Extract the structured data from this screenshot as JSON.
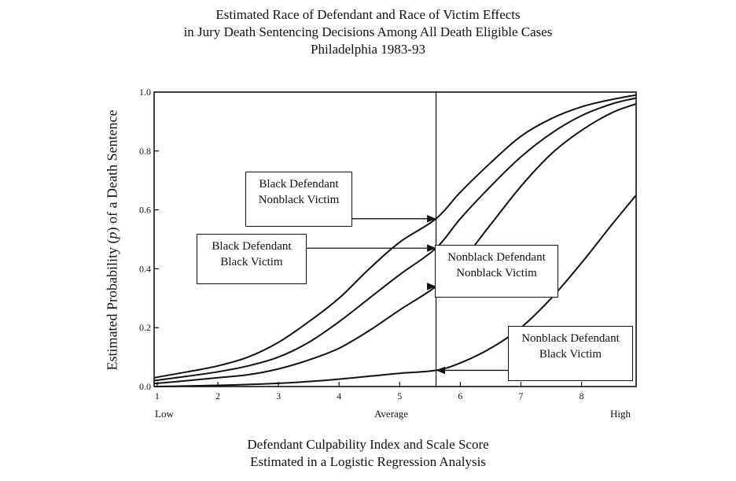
{
  "title_lines": [
    "Estimated Race of Defendant and Race of Victim Effects",
    "in Jury Death Sentencing Decisions Among All Death Eligible Cases",
    "Philadelphia 1983-93"
  ],
  "xlabel_lines": [
    "Defendant Culpability Index and Scale Score",
    "Estimated in a Logistic Regression Analysis"
  ],
  "scale_words": {
    "low": "Low",
    "average": "Average",
    "high": "High"
  },
  "callouts": {
    "bd_nbv": [
      "Black Defendant",
      "Nonblack Victim"
    ],
    "bd_bv": [
      "Black Defendant",
      "Black Victim"
    ],
    "nbd_nbv": [
      "Nonblack Defendant",
      "Nonblack Victim"
    ],
    "nbd_bv": [
      "Nonblack Defendant",
      "Black Victim"
    ]
  },
  "chart_data": {
    "type": "line",
    "title": "Estimated Race of Defendant and Race of Victim Effects in Jury Death Sentencing Decisions Among All Death Eligible Cases Philadelphia 1983-93",
    "xlabel": "Defendant Culpability Index and Scale Score Estimated in a Logistic Regression Analysis",
    "ylabel": "Estimated Probability (p) of a Death Sentence",
    "xlim": [
      0.95,
      8.9
    ],
    "ylim": [
      0,
      1.0
    ],
    "x_ticks": [
      "1",
      "2",
      "3",
      "4",
      "5",
      "6",
      "7",
      "8"
    ],
    "y_ticks": [
      "0.0",
      "0.2",
      "0.4",
      "0.6",
      "0.8",
      "1.0"
    ],
    "average_line_x": 5.6,
    "grid": false,
    "x": [
      0.95,
      1.5,
      2,
      2.5,
      3,
      3.5,
      4,
      4.5,
      5,
      5.6,
      6,
      6.5,
      7,
      7.5,
      8,
      8.5,
      8.9
    ],
    "series": [
      {
        "name": "Black Defendant Nonblack Victim",
        "values": [
          0.03,
          0.05,
          0.07,
          0.1,
          0.15,
          0.22,
          0.3,
          0.4,
          0.49,
          0.57,
          0.66,
          0.76,
          0.85,
          0.91,
          0.95,
          0.975,
          0.99
        ]
      },
      {
        "name": "Black Defendant Black Victim",
        "values": [
          0.02,
          0.035,
          0.05,
          0.07,
          0.1,
          0.15,
          0.22,
          0.3,
          0.38,
          0.47,
          0.57,
          0.68,
          0.78,
          0.86,
          0.92,
          0.96,
          0.98
        ]
      },
      {
        "name": "Nonblack Defendant Nonblack Victim",
        "values": [
          0.01,
          0.02,
          0.03,
          0.04,
          0.06,
          0.09,
          0.13,
          0.19,
          0.26,
          0.34,
          0.42,
          0.55,
          0.68,
          0.79,
          0.87,
          0.93,
          0.96
        ]
      },
      {
        "name": "Nonblack Defendant Black Victim",
        "values": [
          0.0,
          0.002,
          0.004,
          0.007,
          0.011,
          0.017,
          0.025,
          0.035,
          0.045,
          0.055,
          0.08,
          0.13,
          0.2,
          0.3,
          0.42,
          0.55,
          0.65
        ]
      }
    ]
  }
}
